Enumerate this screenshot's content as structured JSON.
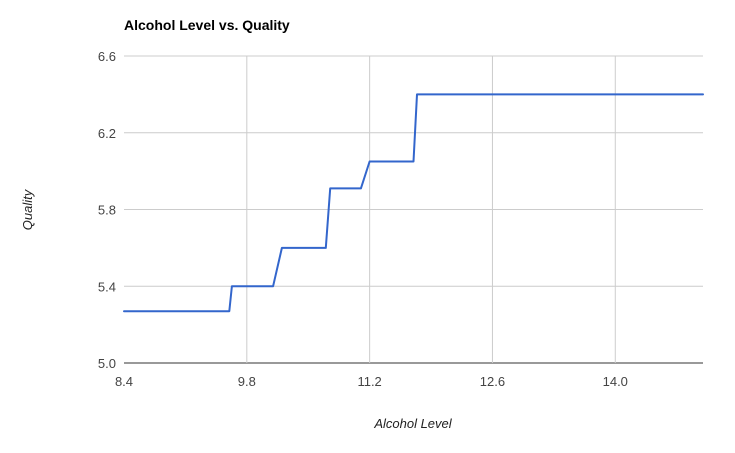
{
  "chart_data": {
    "type": "line",
    "title": "Alcohol Level vs. Quality",
    "xlabel": "Alcohol Level",
    "ylabel": "Quality",
    "xlim": [
      8.4,
      15.0
    ],
    "ylim": [
      5.0,
      6.6
    ],
    "x_ticks": [
      "8.4",
      "9.8",
      "11.2",
      "12.6",
      "14.0"
    ],
    "y_ticks": [
      "5.0",
      "5.4",
      "5.8",
      "6.2",
      "6.6"
    ],
    "grid": true,
    "legend": "none",
    "series": [
      {
        "color": "#3366cc",
        "x": [
          8.4,
          9.6,
          9.63,
          10.1,
          10.2,
          10.7,
          10.75,
          11.1,
          11.2,
          11.7,
          11.74,
          15.0
        ],
        "y": [
          5.27,
          5.27,
          5.4,
          5.4,
          5.6,
          5.6,
          5.91,
          5.91,
          6.05,
          6.05,
          6.4,
          6.4
        ]
      }
    ]
  }
}
